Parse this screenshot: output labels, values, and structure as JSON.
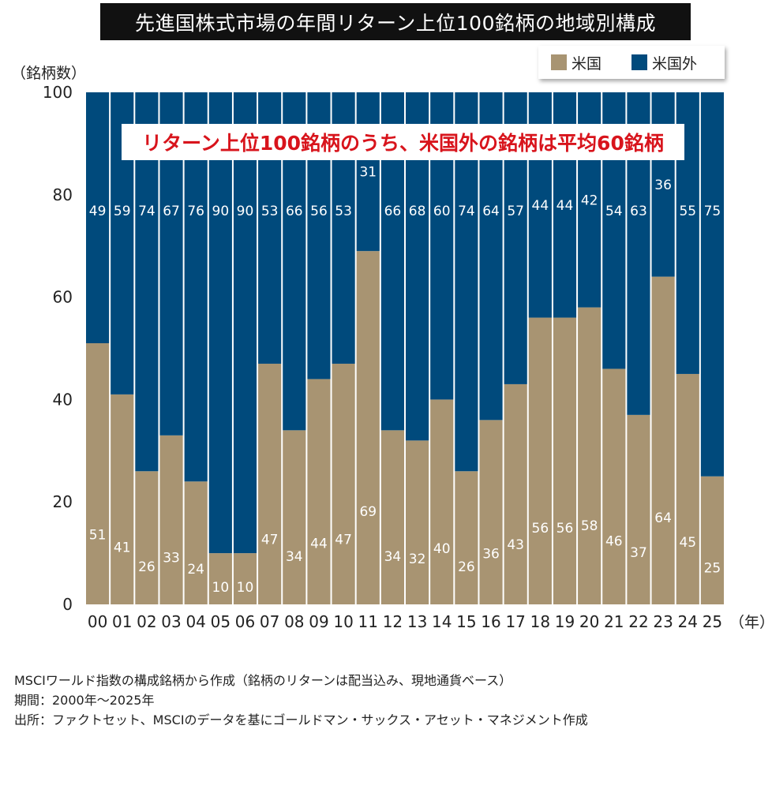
{
  "chart_data": {
    "type": "bar",
    "stacked": true,
    "title": "先進国株式市場の年間リターン上位100銘柄の地域別構成",
    "ylabel": "（銘柄数）",
    "xlabel": "（年）",
    "ylim": [
      0,
      100
    ],
    "yticks": [
      "0",
      "20",
      "40",
      "60",
      "80",
      "100"
    ],
    "categories": [
      "00",
      "01",
      "02",
      "03",
      "04",
      "05",
      "06",
      "07",
      "08",
      "09",
      "10",
      "11",
      "12",
      "13",
      "14",
      "15",
      "16",
      "17",
      "18",
      "19",
      "20",
      "21",
      "22",
      "23",
      "24",
      "25"
    ],
    "series": [
      {
        "name": "米国",
        "color": "#a89472",
        "values": [
          51,
          41,
          26,
          33,
          24,
          10,
          10,
          47,
          34,
          44,
          47,
          69,
          34,
          32,
          40,
          26,
          36,
          43,
          56,
          56,
          58,
          46,
          37,
          64,
          45,
          25
        ]
      },
      {
        "name": "米国外",
        "color": "#004a7c",
        "values": [
          49,
          59,
          74,
          67,
          76,
          90,
          90,
          53,
          66,
          56,
          53,
          31,
          66,
          68,
          60,
          74,
          64,
          57,
          44,
          44,
          42,
          54,
          63,
          36,
          55,
          75
        ]
      }
    ],
    "annotation": "リターン上位100銘柄のうち、米国外の銘柄は平均60銘柄",
    "legend_position": "top-right"
  },
  "notes": [
    "MSCIワールド指数の構成銘柄から作成（銘柄のリターンは配当込み、現地通貨ベース）",
    "期間：2000年～2025年",
    "出所：ファクトセット、MSCIのデータを基にゴールドマン・サックス・アセット・マネジメント作成"
  ]
}
